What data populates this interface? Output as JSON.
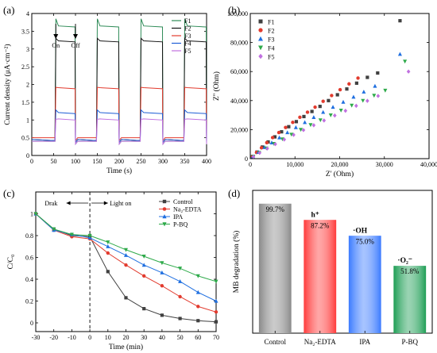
{
  "chart_data": [
    {
      "panel": "(a)",
      "type": "line",
      "xlabel": "Time (s)",
      "ylabel": "Current density (μA·cm⁻²)",
      "xlim": [
        0,
        400
      ],
      "ylim": [
        0,
        4
      ],
      "xticks": [
        0,
        50,
        100,
        150,
        200,
        250,
        300,
        350,
        400
      ],
      "yticks": [
        0.0,
        0.5,
        1.0,
        1.5,
        2.0,
        2.5,
        3.0,
        3.5,
        4.0
      ],
      "annotations": [
        "On",
        "Off"
      ],
      "light_on_intervals": [
        [
          55,
          100
        ],
        [
          150,
          200
        ],
        [
          250,
          300
        ],
        [
          350,
          400
        ]
      ],
      "series": [
        {
          "name": "F1",
          "color": "#2e8b57",
          "off": 0.4,
          "on": 3.62,
          "peak": 3.85
        },
        {
          "name": "F2",
          "color": "#111111",
          "off": 0.45,
          "on": 3.2,
          "peak": 3.3
        },
        {
          "name": "F3",
          "color": "#e23b2e",
          "off": 0.5,
          "on": 1.88,
          "peak": 1.92
        },
        {
          "name": "F4",
          "color": "#1f5fd6",
          "off": 0.45,
          "on": 1.18,
          "peak": 1.28
        },
        {
          "name": "F5",
          "color": "#c070e0",
          "off": 0.4,
          "on": 1.0,
          "peak": 1.02
        }
      ],
      "legend_position": "top-right"
    },
    {
      "panel": "(b)",
      "type": "scatter",
      "xlabel": "Z' (Ohm)",
      "ylabel": "Z'' (Ohm)",
      "xlim": [
        0,
        40000
      ],
      "ylim": [
        0,
        100000
      ],
      "xticks": [
        0,
        10000,
        20000,
        30000,
        40000
      ],
      "xtick_labels": [
        "0",
        "10,000",
        "20,000",
        "30,000",
        "40,000"
      ],
      "yticks": [
        0,
        20000,
        40000,
        60000,
        80000,
        100000
      ],
      "ytick_labels": [
        "0",
        "20,000",
        "40,000",
        "60,000",
        "80,000",
        "100,000"
      ],
      "series": [
        {
          "name": "F1",
          "marker": "square",
          "color": "#404040",
          "x": [
            500,
            1500,
            2700,
            4000,
            5500,
            7000,
            8600,
            10300,
            12000,
            13800,
            15600,
            17500,
            19500,
            21600,
            23800,
            26200,
            28500,
            33500
          ],
          "y": [
            1500,
            4500,
            8000,
            11500,
            15000,
            18500,
            22000,
            25500,
            29000,
            32500,
            36000,
            40000,
            44000,
            48000,
            52000,
            56000,
            59000,
            95000
          ]
        },
        {
          "name": "F2",
          "marker": "circle",
          "color": "#e23b2e",
          "x": [
            500,
            1400,
            2500,
            3700,
            5000,
            6400,
            7900,
            9500,
            11100,
            12800,
            14500,
            16300,
            18200,
            20100,
            22100,
            24100
          ],
          "y": [
            1500,
            4300,
            7500,
            11000,
            14500,
            18000,
            21500,
            25000,
            28500,
            32000,
            35500,
            39500,
            43500,
            47500,
            51500,
            55500
          ]
        },
        {
          "name": "F3",
          "marker": "triangle-up",
          "color": "#1f6fe0",
          "x": [
            600,
            1800,
            3200,
            4800,
            6500,
            8300,
            10200,
            12200,
            14200,
            16300,
            18500,
            20800,
            23100,
            25400,
            27900,
            33500
          ],
          "y": [
            1500,
            4500,
            7800,
            11000,
            14500,
            18000,
            21500,
            25000,
            28500,
            32000,
            35500,
            39000,
            42500,
            46000,
            50000,
            72000
          ]
        },
        {
          "name": "F4",
          "marker": "triangle-down",
          "color": "#2eaa4a",
          "x": [
            700,
            2000,
            3600,
            5300,
            7200,
            9200,
            11300,
            13500,
            15700,
            18000,
            20300,
            22700,
            25200,
            27700,
            30200,
            34600
          ],
          "y": [
            1500,
            4200,
            7200,
            10300,
            13500,
            16700,
            20000,
            23300,
            26600,
            30000,
            33300,
            36700,
            40000,
            43500,
            47000,
            67000
          ]
        },
        {
          "name": "F5",
          "marker": "diamond",
          "color": "#c070e0",
          "x": [
            700,
            2100,
            3800,
            5600,
            7600,
            9700,
            11900,
            14200,
            16500,
            18900,
            21300,
            23700,
            26200,
            28600,
            35400
          ],
          "y": [
            1400,
            4000,
            7000,
            10000,
            13200,
            16400,
            19700,
            23000,
            26300,
            29700,
            33000,
            36400,
            39800,
            43200,
            60000
          ]
        }
      ],
      "legend_position": "top-left"
    },
    {
      "panel": "(c)",
      "type": "line",
      "xlabel": "Time (min)",
      "ylabel": "C/C₀",
      "xlim": [
        -30,
        70
      ],
      "ylim": [
        0,
        1
      ],
      "xticks": [
        -30,
        -20,
        -10,
        0,
        10,
        20,
        30,
        40,
        50,
        60,
        70
      ],
      "yticks": [
        0.0,
        0.2,
        0.4,
        0.6,
        0.8,
        1.0
      ],
      "annotations": [
        "Drak",
        "Light on"
      ],
      "x": [
        -30,
        -20,
        -10,
        0,
        10,
        20,
        30,
        40,
        50,
        60,
        70
      ],
      "series": [
        {
          "name": "Control",
          "marker": "square",
          "color": "#404040",
          "values": [
            1.0,
            0.86,
            0.8,
            0.79,
            0.47,
            0.23,
            0.13,
            0.07,
            0.04,
            0.02,
            0.01
          ]
        },
        {
          "name": "Na₂-EDTA",
          "marker": "circle",
          "color": "#e23b2e",
          "values": [
            1.0,
            0.85,
            0.79,
            0.77,
            0.64,
            0.53,
            0.43,
            0.34,
            0.24,
            0.15,
            0.1
          ]
        },
        {
          "name": "IPA",
          "marker": "triangle-up",
          "color": "#1f6fe0",
          "values": [
            1.0,
            0.85,
            0.81,
            0.78,
            0.7,
            0.62,
            0.53,
            0.46,
            0.38,
            0.28,
            0.2
          ]
        },
        {
          "name": "P-BQ",
          "marker": "triangle-down",
          "color": "#2eaa4a",
          "values": [
            1.0,
            0.86,
            0.81,
            0.8,
            0.74,
            0.67,
            0.61,
            0.55,
            0.5,
            0.43,
            0.38
          ]
        }
      ],
      "legend_position": "top-right"
    },
    {
      "panel": "(d)",
      "type": "bar",
      "ylabel": "MB degradation (%)",
      "ylim": [
        0,
        110
      ],
      "categories": [
        "Control",
        "Na₂-EDTA",
        "IPA",
        "P-BQ"
      ],
      "values": [
        99.7,
        87.2,
        75.0,
        51.8
      ],
      "value_labels": [
        "99.7%",
        "87.2%",
        "75.0%",
        "51.8%"
      ],
      "species_labels": [
        "",
        "h⁺",
        "·OH",
        "·O₂⁻"
      ],
      "colors": [
        "#8a8a8a",
        "#ff3b3b",
        "#3b7bff",
        "#1e9e55"
      ]
    }
  ]
}
